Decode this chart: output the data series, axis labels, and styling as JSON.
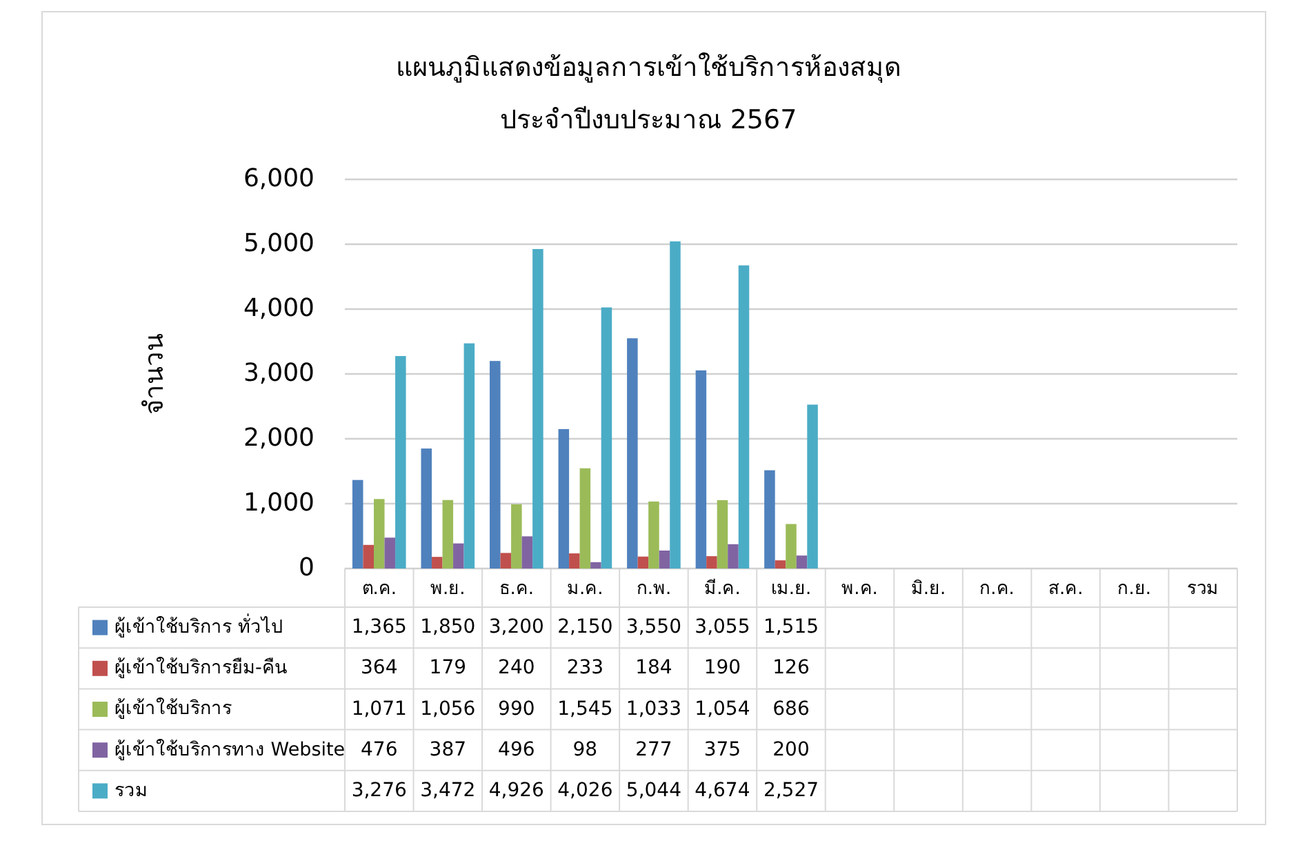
{
  "chart_data": {
    "type": "bar",
    "title": "แผนภูมิแสดงข้อมูลการเข้าใช้บริการห้องสมุด",
    "subtitle": "ประจำปีงบประมาณ 2567",
    "ylabel": "จำนวน",
    "categories": [
      "ต.ค.",
      "พ.ย.",
      "ธ.ค.",
      "ม.ค.",
      "ก.พ.",
      "มี.ค.",
      "เม.ย.",
      "พ.ค.",
      "มิ.ย.",
      "ก.ค.",
      "ส.ค.",
      "ก.ย.",
      "รวม"
    ],
    "series": [
      {
        "name": "ผู้เข้าใช้บริการ ทั่วไป",
        "color": "#4f81bd",
        "values": [
          1365,
          1850,
          3200,
          2150,
          3550,
          3055,
          1515,
          null,
          null,
          null,
          null,
          null,
          null
        ],
        "value_labels": [
          "1,365",
          "1,850",
          "3,200",
          "2,150",
          "3,550",
          "3,055",
          "1,515",
          null,
          null,
          null,
          null,
          null,
          null
        ]
      },
      {
        "name": "ผู้เข้าใช้บริการยืม-คืน",
        "color": "#c0504d",
        "values": [
          364,
          179,
          240,
          233,
          184,
          190,
          126,
          null,
          null,
          null,
          null,
          null,
          null
        ],
        "value_labels": [
          "364",
          "179",
          "240",
          "233",
          "184",
          "190",
          "126",
          null,
          null,
          null,
          null,
          null,
          null
        ]
      },
      {
        "name": "ผู้เข้าใช้บริการ",
        "color": "#9bbb59",
        "values": [
          1071,
          1056,
          990,
          1545,
          1033,
          1054,
          686,
          null,
          null,
          null,
          null,
          null,
          null
        ],
        "value_labels": [
          "1,071",
          "1,056",
          "990",
          "1,545",
          "1,033",
          "1,054",
          "686",
          null,
          null,
          null,
          null,
          null,
          null
        ]
      },
      {
        "name": "ผู้เข้าใช้บริการทาง Website",
        "color": "#8064a2",
        "values": [
          476,
          387,
          496,
          98,
          277,
          375,
          200,
          null,
          null,
          null,
          null,
          null,
          null
        ],
        "value_labels": [
          "476",
          "387",
          "496",
          "98",
          "277",
          "375",
          "200",
          null,
          null,
          null,
          null,
          null,
          null
        ]
      },
      {
        "name": "รวม",
        "color": "#4bacc6",
        "values": [
          3276,
          3472,
          4926,
          4026,
          5044,
          4674,
          2527,
          null,
          null,
          null,
          null,
          null,
          null
        ],
        "value_labels": [
          "3,276",
          "3,472",
          "4,926",
          "4,026",
          "5,044",
          "4,674",
          "2,527",
          null,
          null,
          null,
          null,
          null,
          null
        ]
      }
    ],
    "ylim": [
      0,
      6000
    ],
    "yticks": [
      0,
      {
        "value": 1000,
        "label": "1,000"
      },
      {
        "value": 2000,
        "label": "2,000"
      },
      {
        "value": 3000,
        "label": "3,000"
      },
      {
        "value": 4000,
        "label": "4,000"
      },
      {
        "value": 5000,
        "label": "5,000"
      },
      {
        "value": 6000,
        "label": "6,000"
      }
    ],
    "grid": "y",
    "legend": "bottom"
  }
}
